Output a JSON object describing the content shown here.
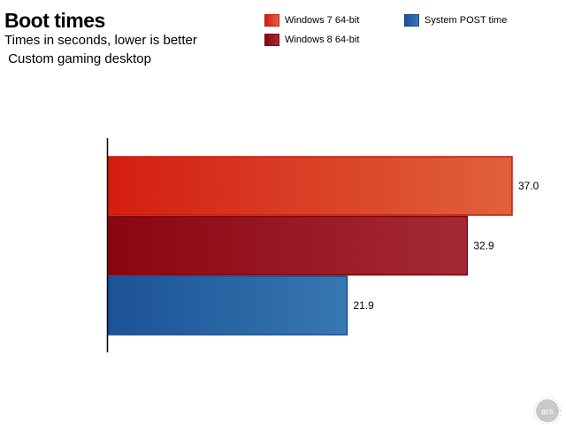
{
  "chart_data": {
    "type": "bar",
    "orientation": "horizontal",
    "title": "Boot times",
    "subtitle": "Times in seconds, lower is better",
    "subtitle2": " Custom gaming desktop",
    "xlabel": "",
    "ylabel": "",
    "xlim": [
      0,
      37.0
    ],
    "grid": false,
    "legend_position": "top-right",
    "series": [
      {
        "name": "Windows 7 64-bit",
        "value": 37.0,
        "label": "37.0",
        "color_start": "#d41e10",
        "color_end": "#e0613d",
        "stroke": "#c41a0f"
      },
      {
        "name": "Windows 8 64-bit",
        "value": 32.9,
        "label": "32.9",
        "color_start": "#8a0610",
        "color_end": "#a52a35",
        "stroke": "#7a0710"
      },
      {
        "name": "System POST time",
        "value": 21.9,
        "label": "21.9",
        "color_start": "#1c5296",
        "color_end": "#3778b2",
        "stroke": "#1a4b8c"
      }
    ]
  },
  "logo": {
    "text": "ars"
  }
}
